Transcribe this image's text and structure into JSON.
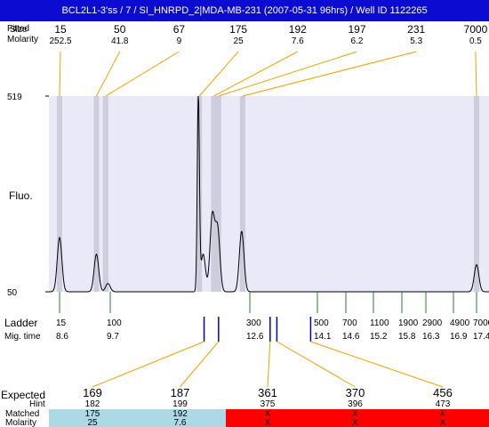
{
  "window": {
    "title": "BCL2L1-3'ss / 7 / SI_HNRPD_2|MDA-MB-231 (2007-05-31 96hrs) / Well ID 1122265"
  },
  "labels": {
    "top_row1": "Fitted",
    "top_row1_overlap": "Size",
    "top_row2": "Molarity",
    "fluo": "Fluo.",
    "ladder": "Ladder",
    "mig_time": "Mig. time",
    "expected": "Expected",
    "hint": "Hint",
    "matched": "Matched",
    "molarity": "Molarity"
  },
  "colors": {
    "title_bg": "#0b0bd1",
    "plot_bg": "#e9e9f8",
    "lane": "#c8c8d8",
    "orange": "#f0a000",
    "green": "#208020",
    "blue": "#0000cc",
    "red_text": "#e00000",
    "matched_bg": "#add8e6",
    "missing_bg": "#ff0000"
  },
  "chart_data": {
    "type": "line",
    "ylabel": "Fluo.",
    "ylim": [
      50,
      519
    ],
    "yticks": [
      50,
      519
    ],
    "fitted_peaks": [
      {
        "size": "15",
        "molarity": "252.5",
        "mig": 8.6
      },
      {
        "size": "50",
        "molarity": "41.8",
        "mig": 9.4
      },
      {
        "size": "67",
        "molarity": "9",
        "mig": 9.6
      },
      {
        "size": "175",
        "molarity": "25",
        "mig": 11.55
      },
      {
        "size": "192",
        "molarity": "7.6",
        "mig": 11.85
      },
      {
        "size": "197",
        "molarity": "6.2",
        "mig": 11.95
      },
      {
        "size": "231",
        "molarity": "5.3",
        "mig": 12.45
      },
      {
        "size": "7000",
        "molarity": "0.5",
        "mig": 17.4
      }
    ],
    "trace_peaks": [
      {
        "mig": 8.6,
        "height": 180
      },
      {
        "mig": 9.4,
        "height": 140
      },
      {
        "mig": 9.65,
        "height": 70
      },
      {
        "mig": 11.53,
        "height": 519
      },
      {
        "mig": 11.63,
        "height": 140
      },
      {
        "mig": 11.82,
        "height": 230
      },
      {
        "mig": 11.93,
        "height": 200
      },
      {
        "mig": 12.43,
        "height": 195
      },
      {
        "mig": 17.4,
        "height": 115
      }
    ],
    "ladder": [
      {
        "size": "15",
        "mig": "8.6"
      },
      {
        "size": "100",
        "mig": "9.7"
      },
      {
        "size": "300",
        "mig": "12.6"
      },
      {
        "size": "500",
        "mig": "14.1"
      },
      {
        "size": "700",
        "mig": "14.6"
      },
      {
        "size": "1100",
        "mig": "15.2"
      },
      {
        "size": "1900",
        "mig": "15.8"
      },
      {
        "size": "2900",
        "mig": "16.3"
      },
      {
        "size": "4900",
        "mig": "16.9"
      },
      {
        "size": "7000",
        "mig": "17.4"
      }
    ],
    "expected": [
      {
        "expected": "169",
        "hint": "182",
        "matched": "175",
        "molarity": "25",
        "found": true,
        "mig": 11.65
      },
      {
        "expected": "187",
        "hint": "199",
        "matched": "192",
        "molarity": "7.6",
        "found": true,
        "mig": 11.95
      },
      {
        "expected": "361",
        "hint": "375",
        "matched": "X",
        "molarity": "X",
        "found": false,
        "mig": 13.05
      },
      {
        "expected": "370",
        "hint": "396",
        "matched": "X",
        "molarity": "X",
        "found": false,
        "mig": 13.2
      },
      {
        "expected": "456",
        "hint": "473",
        "matched": "X",
        "molarity": "X",
        "found": false,
        "mig": 13.95
      }
    ]
  }
}
